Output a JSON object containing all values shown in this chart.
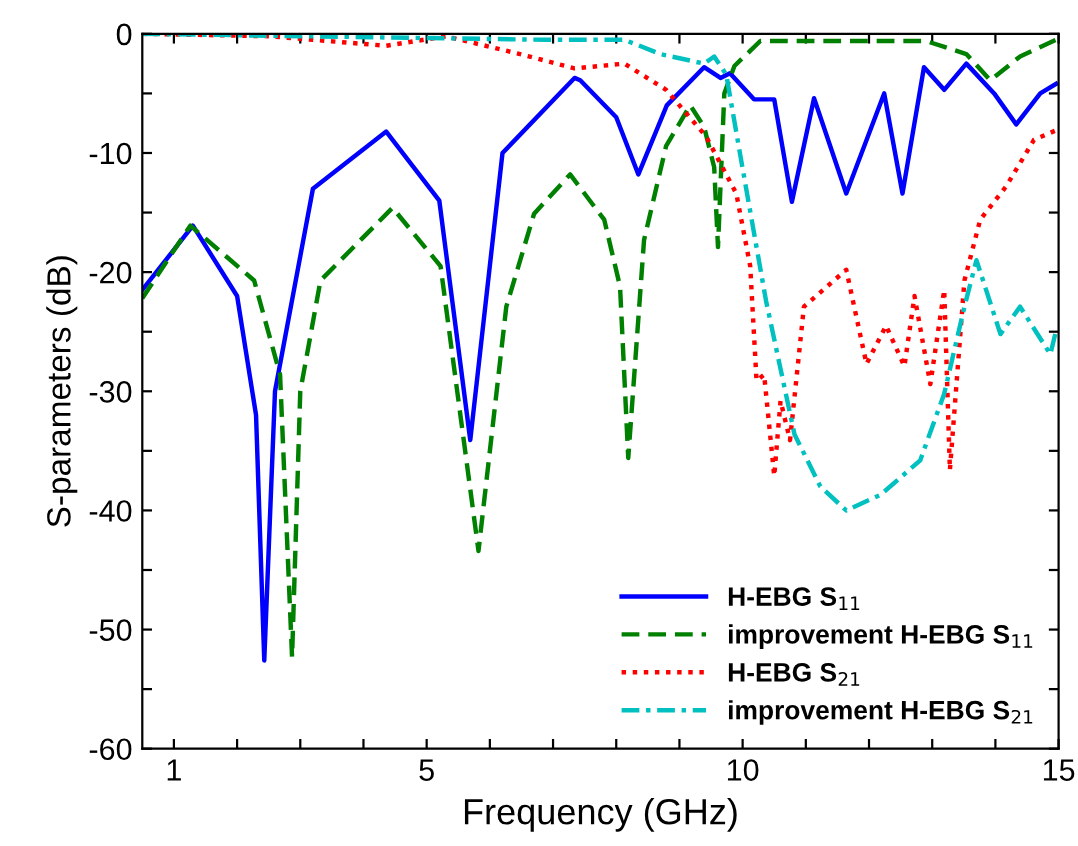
{
  "chart_data": {
    "type": "line",
    "xlabel": "Frequency (GHz)",
    "ylabel": "S-parameters (dB)",
    "xlim": [
      0.5,
      15
    ],
    "ylim": [
      -60,
      0
    ],
    "xticks": [
      1,
      {
        "value": 2,
        "label": null
      },
      {
        "value": 3,
        "label": null
      },
      {
        "value": 4,
        "label": null
      },
      5,
      {
        "value": 6,
        "label": null
      },
      {
        "value": 7,
        "label": null
      },
      {
        "value": 8,
        "label": null
      },
      {
        "value": 9,
        "label": null
      },
      10,
      {
        "value": 11,
        "label": null
      },
      {
        "value": 12,
        "label": null
      },
      {
        "value": 13,
        "label": null
      },
      {
        "value": 14,
        "label": null
      },
      15
    ],
    "yticks": [
      -60,
      {
        "value": -55,
        "label": null
      },
      -50,
      {
        "value": -45,
        "label": null
      },
      -40,
      {
        "value": -35,
        "label": null
      },
      -30,
      {
        "value": -25,
        "label": null
      },
      -20,
      {
        "value": -15,
        "label": null
      },
      -10,
      {
        "value": -5,
        "label": null
      },
      0
    ],
    "grid": false,
    "legend": "bottom right",
    "series": [
      {
        "name": "H-EBG S$_{11}$",
        "color": "#0000ff",
        "line_style": "solid",
        "x": [
          0.5,
          1.3,
          2.0,
          2.3,
          2.43,
          2.6,
          3.2,
          4.36,
          5.2,
          5.69,
          6.2,
          7.34,
          7.43,
          8.0,
          8.35,
          8.8,
          9.39,
          9.65,
          9.8,
          10.18,
          10.5,
          10.78,
          11.13,
          11.64,
          12.24,
          12.53,
          12.87,
          13.19,
          13.54,
          13.98,
          14.33,
          14.71,
          14.96
        ],
        "values": [
          -21.5,
          -16.1,
          -22,
          -32,
          -52.6,
          -30,
          -13,
          -8.2,
          -14,
          -34.1,
          -10,
          -3.7,
          -3.9,
          -7,
          -11.8,
          -6,
          -2.8,
          -3.7,
          -3.3,
          -5.5,
          -5.5,
          -14.1,
          -5.4,
          -13.4,
          -5.0,
          -13.4,
          -2.8,
          -4.7,
          -2.5,
          -5,
          -7.6,
          -5,
          -4.2
        ]
      },
      {
        "name": "improvement H-EBG S$_{11}$",
        "color": "#008000",
        "line_style": "dashed",
        "x": [
          0.5,
          1.26,
          2.27,
          2.68,
          2.87,
          3.0,
          3.32,
          4.46,
          5.22,
          5.82,
          6.26,
          6.7,
          7.27,
          7.81,
          8.06,
          8.19,
          8.44,
          8.79,
          9.17,
          9.39,
          9.55,
          9.61,
          9.71,
          9.87,
          10.28,
          12.9,
          13.54,
          13.92,
          14.39,
          14.96
        ],
        "values": [
          -22.2,
          -16.1,
          -20.7,
          -28.6,
          -52.3,
          -30,
          -20.7,
          -14.6,
          -19.5,
          -43.4,
          -22.9,
          -15.1,
          -11.8,
          -15.6,
          -21.2,
          -35.6,
          -17.3,
          -9.4,
          -6.0,
          -7.8,
          -11.2,
          -17.9,
          -5,
          -2.7,
          -0.6,
          -0.6,
          -1.7,
          -3.9,
          -1.9,
          -0.5
        ]
      },
      {
        "name": "H-EBG S$_{21}$",
        "color": "#ff0000",
        "line_style": "dotted",
        "x": [
          0.5,
          2.5,
          4.36,
          5.3,
          6.48,
          7.34,
          8.13,
          8.79,
          9.42,
          9.9,
          10.12,
          10.22,
          10.34,
          10.5,
          10.6,
          10.75,
          10.97,
          11.64,
          11.96,
          12.27,
          12.56,
          12.72,
          12.97,
          13.19,
          13.28,
          13.51,
          13.76,
          14.17,
          14.61,
          14.96
        ],
        "values": [
          0,
          -0.2,
          -1.0,
          -0.2,
          -1.7,
          -2.9,
          -2.5,
          -4.7,
          -8.6,
          -13.4,
          -19.5,
          -29.1,
          -28.6,
          -37.1,
          -30.8,
          -34.1,
          -22.9,
          -19.8,
          -27.7,
          -24.5,
          -27.9,
          -22.0,
          -29.4,
          -21.5,
          -36.6,
          -20.7,
          -15.6,
          -12.8,
          -8.9,
          -8.1
        ]
      },
      {
        "name": "improvement H-EBG S$_{21}$",
        "color": "#00c0c0",
        "line_style": "dashdot",
        "x": [
          0.5,
          6.89,
          8.13,
          8.7,
          9.39,
          9.55,
          9.74,
          9.96,
          10.37,
          10.82,
          11.23,
          11.64,
          12.18,
          12.81,
          13.19,
          13.51,
          13.7,
          14.08,
          14.39,
          14.87,
          14.96
        ],
        "values": [
          0,
          -0.5,
          -0.5,
          -1.7,
          -2.5,
          -1.9,
          -3.4,
          -10.1,
          -22.4,
          -33.6,
          -38,
          -40,
          -38.7,
          -35.8,
          -30.2,
          -22.9,
          -19,
          -25.2,
          -22.9,
          -26.9,
          -24.9
        ]
      }
    ]
  }
}
